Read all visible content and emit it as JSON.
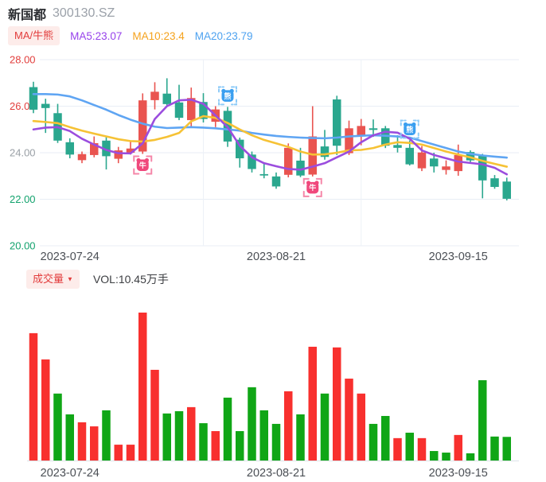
{
  "header": {
    "stock_name": "新国都",
    "stock_code": "300130.SZ"
  },
  "indicator_bar": {
    "selector_label": "MA/牛熊",
    "ma_items": [
      {
        "label": "MA5:23.07",
        "color": "#9742eb"
      },
      {
        "label": "MA10:23.4",
        "color": "#f5a21c"
      },
      {
        "label": "MA20:23.79",
        "color": "#4da2f0"
      }
    ]
  },
  "volume_bar": {
    "selector_label": "成交量",
    "caret": "▼",
    "vol_label": "VOL:10.45万手"
  },
  "palette": {
    "up_red": "#e95450",
    "down_green": "#2aa78e",
    "vol_red": "#f8302e",
    "vol_green": "#10a616",
    "ma5": "#9b4dde",
    "ma10": "#f6c235",
    "ma20": "#5fa5f3",
    "bull": "#f0487c",
    "bull_bracket": "#f587a9",
    "bear": "#3a9ff0",
    "bear_bracket": "#8ecbf8",
    "tick_red": "#e23e3c",
    "tick_green": "#12a26d",
    "tick_gray": "#9aa0a6",
    "grid": "#e8eef5",
    "vgrid": "#edf1f7",
    "axis_line": "#dde3ea",
    "date_label": "#4b4f55"
  },
  "chart_data": [
    {
      "type": "candlestick",
      "title": "新国都 300130.SZ 日K with MA/牛熊 signals",
      "ylim": [
        20,
        28
      ],
      "grid": true,
      "y_ticks": [
        {
          "label": "28.00",
          "value": 28,
          "tone": "red"
        },
        {
          "label": "26.00",
          "value": 26,
          "tone": "red"
        },
        {
          "label": "24.00",
          "value": 24,
          "tone": "gray"
        },
        {
          "label": "22.00",
          "value": 22,
          "tone": "green"
        },
        {
          "label": "20.00",
          "value": 20,
          "tone": "green"
        }
      ],
      "x_ticks": [
        {
          "label": "2023-07-24",
          "index": 3
        },
        {
          "label": "2023-08-21",
          "index": 20
        },
        {
          "label": "2023-09-15",
          "index": 35
        }
      ],
      "vertical_gridlines": [
        14,
        27
      ],
      "candles_ochl": [
        [
          26.82,
          25.85,
          27.05,
          25.7
        ],
        [
          26.1,
          25.92,
          26.32,
          24.85
        ],
        [
          25.7,
          24.52,
          26.1,
          24.42
        ],
        [
          24.45,
          23.92,
          24.62,
          23.76
        ],
        [
          23.68,
          23.94,
          24.05,
          23.55
        ],
        [
          23.9,
          24.41,
          24.7,
          23.8
        ],
        [
          24.52,
          23.85,
          24.68,
          23.28
        ],
        [
          23.74,
          24.1,
          24.25,
          23.55
        ],
        [
          24.0,
          24.18,
          24.47,
          23.92
        ],
        [
          24.05,
          26.25,
          26.55,
          23.95
        ],
        [
          26.26,
          26.62,
          27.03,
          25.86
        ],
        [
          26.54,
          26.09,
          27.2,
          25.98
        ],
        [
          26.16,
          25.5,
          26.92,
          25.4
        ],
        [
          25.4,
          26.35,
          26.8,
          25.1
        ],
        [
          26.18,
          25.45,
          26.56,
          25.3
        ],
        [
          25.33,
          25.86,
          26.0,
          25.1
        ],
        [
          25.8,
          24.48,
          25.97,
          24.25
        ],
        [
          24.56,
          23.76,
          24.65,
          23.36
        ],
        [
          23.92,
          23.3,
          24.05,
          23.15
        ],
        [
          23.08,
          23.02,
          23.55,
          22.9
        ],
        [
          22.98,
          22.55,
          23.15,
          22.45
        ],
        [
          23.05,
          24.21,
          24.4,
          22.94
        ],
        [
          23.66,
          23.02,
          24.21,
          22.95
        ],
        [
          23.06,
          24.7,
          26.0,
          22.98
        ],
        [
          24.27,
          23.82,
          24.98,
          23.7
        ],
        [
          26.29,
          24.3,
          26.45,
          23.9
        ],
        [
          23.98,
          25.05,
          25.38,
          23.9
        ],
        [
          24.75,
          25.15,
          25.45,
          24.32
        ],
        [
          25.05,
          24.98,
          25.43,
          24.68
        ],
        [
          25.05,
          24.3,
          25.15,
          24.2
        ],
        [
          24.33,
          24.21,
          24.75,
          24.01
        ],
        [
          24.21,
          23.5,
          24.53,
          23.45
        ],
        [
          23.33,
          24.01,
          24.29,
          23.21
        ],
        [
          23.75,
          23.41,
          24.0,
          23.15
        ],
        [
          23.26,
          23.41,
          23.67,
          23.06
        ],
        [
          23.21,
          23.9,
          24.35,
          23.01
        ],
        [
          24.03,
          23.67,
          24.1,
          23.55
        ],
        [
          23.9,
          22.81,
          23.95,
          22.04
        ],
        [
          22.9,
          22.53,
          23.04,
          22.45
        ],
        [
          22.76,
          22.02,
          22.93,
          21.95
        ]
      ],
      "ma_series": [
        {
          "name": "MA5",
          "legend": "MA5:23.07",
          "values": [
            25.0,
            25.08,
            25.1,
            24.93,
            24.6,
            24.35,
            24.12,
            23.98,
            23.97,
            24.4,
            25.45,
            26.0,
            26.25,
            26.28,
            26.1,
            25.6,
            25.1,
            24.3,
            23.8,
            23.55,
            23.42,
            23.3,
            23.27,
            23.4,
            23.55,
            23.8,
            24.05,
            24.45,
            24.75,
            24.9,
            24.86,
            24.6,
            24.1,
            23.9,
            23.76,
            23.62,
            23.56,
            23.5,
            23.35,
            23.07
          ]
        },
        {
          "name": "MA10",
          "legend": "MA10:23.4",
          "values": [
            25.36,
            25.32,
            25.27,
            25.1,
            24.95,
            24.82,
            24.7,
            24.58,
            24.5,
            24.48,
            24.55,
            24.68,
            24.85,
            25.35,
            25.57,
            25.5,
            25.28,
            25.0,
            24.75,
            24.55,
            24.4,
            24.25,
            24.05,
            23.92,
            23.93,
            24.0,
            24.1,
            24.12,
            24.2,
            24.35,
            24.45,
            24.42,
            24.35,
            24.2,
            24.05,
            23.92,
            23.8,
            23.65,
            23.52,
            23.4
          ]
        },
        {
          "name": "MA20",
          "legend": "MA20:23.79",
          "values": [
            26.52,
            26.52,
            26.5,
            26.42,
            26.25,
            26.05,
            25.85,
            25.62,
            25.42,
            25.25,
            25.12,
            25.06,
            25.08,
            25.1,
            25.08,
            25.05,
            25.0,
            24.95,
            24.85,
            24.78,
            24.72,
            24.68,
            24.65,
            24.63,
            24.62,
            24.65,
            24.7,
            24.73,
            24.75,
            24.73,
            24.7,
            24.65,
            24.5,
            24.35,
            24.2,
            24.05,
            23.95,
            23.88,
            23.83,
            23.79
          ]
        }
      ],
      "markers": [
        {
          "kind": "bull",
          "glyph": "牛",
          "index": 9,
          "placement": "below"
        },
        {
          "kind": "bear",
          "glyph": "熊",
          "index": 16,
          "placement": "above"
        },
        {
          "kind": "bull",
          "glyph": "牛",
          "index": 23,
          "placement": "below"
        },
        {
          "kind": "bear",
          "glyph": "熊",
          "index": 31,
          "placement": "above"
        }
      ]
    },
    {
      "type": "bar",
      "title": "成交量",
      "unit": "万手",
      "current_vol_label": "VOL:10.45万手",
      "x_ticks": [
        {
          "label": "2023-07-24",
          "index": 3
        },
        {
          "label": "2023-08-21",
          "index": 20
        },
        {
          "label": "2023-09-15",
          "index": 35
        }
      ],
      "values": [
        56.3,
        44.7,
        29.6,
        20.4,
        16.9,
        15.1,
        22.2,
        7.0,
        7.0,
        65.4,
        40.1,
        20.8,
        21.8,
        23.6,
        16.5,
        13.0,
        27.8,
        13.0,
        32.4,
        22.2,
        16.2,
        30.6,
        20.4,
        50.3,
        29.6,
        50.0,
        36.2,
        29.6,
        16.2,
        19.7,
        9.9,
        12.3,
        9.9,
        4.2,
        3.5,
        11.3,
        3.2,
        35.5,
        10.6,
        10.45
      ],
      "colors": [
        "red",
        "red",
        "green",
        "green",
        "red",
        "red",
        "green",
        "red",
        "red",
        "red",
        "red",
        "green",
        "green",
        "red",
        "green",
        "red",
        "green",
        "green",
        "green",
        "green",
        "green",
        "red",
        "green",
        "red",
        "green",
        "red",
        "red",
        "red",
        "green",
        "green",
        "red",
        "green",
        "red",
        "green",
        "green",
        "red",
        "green",
        "green",
        "green",
        "green"
      ]
    }
  ]
}
